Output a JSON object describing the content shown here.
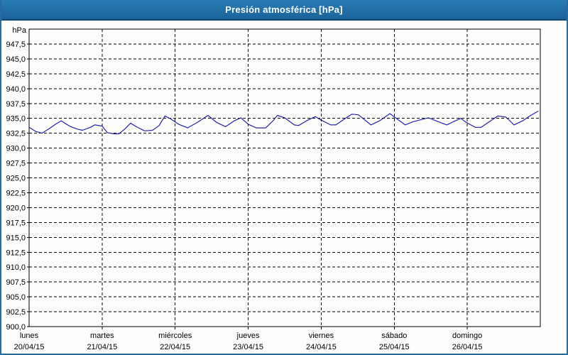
{
  "window": {
    "title": "Presión atmosférica [hPa]",
    "titlebar_color": "#1d6fa5",
    "border_color": "#2b6a9d",
    "plot_background": "#fdfdfb"
  },
  "chart_data": {
    "type": "line",
    "title": "Presión atmosférica [hPa]",
    "unit_label": "hPa",
    "xlabel": "",
    "ylabel": "hPa",
    "ylim": [
      900,
      950
    ],
    "ytick_step": 2.5,
    "grid": true,
    "grid_style": "dashed",
    "grid_color": "#000000",
    "line_color": "#2222b2",
    "legend": "none",
    "yticks": [
      {
        "value": 947.5,
        "label": "947,5"
      },
      {
        "value": 945.0,
        "label": "945,0"
      },
      {
        "value": 942.5,
        "label": "942,5"
      },
      {
        "value": 940.0,
        "label": "940,0"
      },
      {
        "value": 937.5,
        "label": "937,5"
      },
      {
        "value": 935.0,
        "label": "935,0"
      },
      {
        "value": 932.5,
        "label": "932,5"
      },
      {
        "value": 930.0,
        "label": "930,0"
      },
      {
        "value": 927.5,
        "label": "927,5"
      },
      {
        "value": 925.0,
        "label": "925,0"
      },
      {
        "value": 922.5,
        "label": "922,5"
      },
      {
        "value": 920.0,
        "label": "920,0"
      },
      {
        "value": 917.5,
        "label": "917,5"
      },
      {
        "value": 915.0,
        "label": "915,0"
      },
      {
        "value": 912.5,
        "label": "912,5"
      },
      {
        "value": 910.0,
        "label": "910,0"
      },
      {
        "value": 907.5,
        "label": "907,5"
      },
      {
        "value": 905.0,
        "label": "905,0"
      },
      {
        "value": 902.5,
        "label": "902,5"
      },
      {
        "value": 900.0,
        "label": "900,0"
      }
    ],
    "x_days": [
      {
        "name": "lunes",
        "date": "20/04/15"
      },
      {
        "name": "martes",
        "date": "21/04/15"
      },
      {
        "name": "miércoles",
        "date": "22/04/15"
      },
      {
        "name": "jueves",
        "date": "23/04/15"
      },
      {
        "name": "viernes",
        "date": "24/04/15"
      },
      {
        "name": "sábado",
        "date": "25/04/15"
      },
      {
        "name": "domingo",
        "date": "26/04/15"
      }
    ],
    "series": [
      {
        "name": "Presión atmosférica",
        "x_unit": "days_from_start",
        "points": [
          [
            0.0,
            933.5
          ],
          [
            0.09,
            932.8
          ],
          [
            0.175,
            932.5
          ],
          [
            0.28,
            933.3
          ],
          [
            0.36,
            934.0
          ],
          [
            0.44,
            934.6
          ],
          [
            0.5,
            934.1
          ],
          [
            0.57,
            933.6
          ],
          [
            0.66,
            933.2
          ],
          [
            0.73,
            933.0
          ],
          [
            0.84,
            933.5
          ],
          [
            0.9,
            933.9
          ],
          [
            1.0,
            933.7
          ],
          [
            1.07,
            932.6
          ],
          [
            1.16,
            932.4
          ],
          [
            1.23,
            932.4
          ],
          [
            1.31,
            933.2
          ],
          [
            1.39,
            934.2
          ],
          [
            1.44,
            933.8
          ],
          [
            1.5,
            933.4
          ],
          [
            1.58,
            932.9
          ],
          [
            1.69,
            933.0
          ],
          [
            1.78,
            933.8
          ],
          [
            1.86,
            935.4
          ],
          [
            1.94,
            934.9
          ],
          [
            2.05,
            934.0
          ],
          [
            2.17,
            933.4
          ],
          [
            2.3,
            934.3
          ],
          [
            2.45,
            935.5
          ],
          [
            2.57,
            934.3
          ],
          [
            2.69,
            933.6
          ],
          [
            2.81,
            934.6
          ],
          [
            2.9,
            935.1
          ],
          [
            3.0,
            934.0
          ],
          [
            3.11,
            933.4
          ],
          [
            3.24,
            933.4
          ],
          [
            3.34,
            934.6
          ],
          [
            3.4,
            935.5
          ],
          [
            3.5,
            935.1
          ],
          [
            3.63,
            933.9
          ],
          [
            3.69,
            933.8
          ],
          [
            3.8,
            934.6
          ],
          [
            3.92,
            935.3
          ],
          [
            4.0,
            934.7
          ],
          [
            4.13,
            933.9
          ],
          [
            4.2,
            933.9
          ],
          [
            4.32,
            934.9
          ],
          [
            4.42,
            935.7
          ],
          [
            4.51,
            935.6
          ],
          [
            4.6,
            934.7
          ],
          [
            4.68,
            933.9
          ],
          [
            4.8,
            934.6
          ],
          [
            4.94,
            935.8
          ],
          [
            5.05,
            934.8
          ],
          [
            5.15,
            933.9
          ],
          [
            5.25,
            934.4
          ],
          [
            5.37,
            934.8
          ],
          [
            5.47,
            935.1
          ],
          [
            5.59,
            934.5
          ],
          [
            5.72,
            933.9
          ],
          [
            5.82,
            934.5
          ],
          [
            5.91,
            935.0
          ],
          [
            5.99,
            934.3
          ],
          [
            6.11,
            933.5
          ],
          [
            6.19,
            933.5
          ],
          [
            6.31,
            934.5
          ],
          [
            6.42,
            935.4
          ],
          [
            6.53,
            935.2
          ],
          [
            6.64,
            933.9
          ],
          [
            6.76,
            934.6
          ],
          [
            6.87,
            935.5
          ],
          [
            6.97,
            936.2
          ]
        ]
      }
    ]
  }
}
